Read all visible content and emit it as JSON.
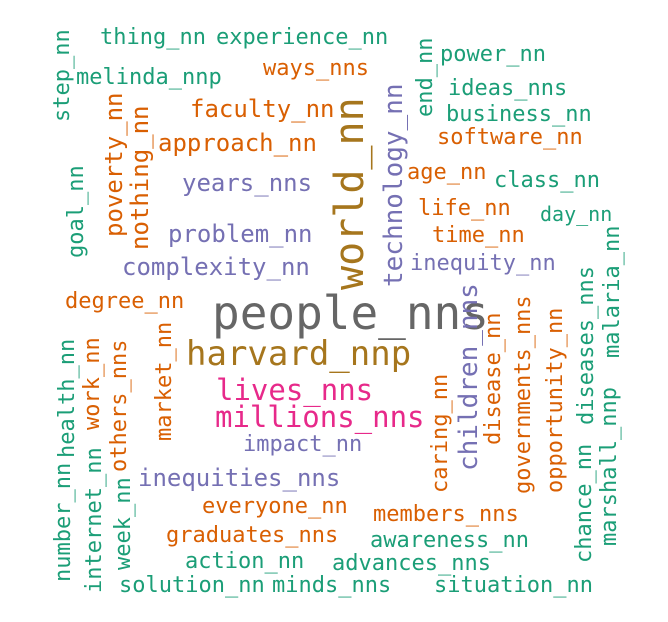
{
  "colors": {
    "teal": "#1b9e77",
    "orange": "#d95f02",
    "purple": "#7570b3",
    "magenta": "#e7298a",
    "olive": "#a6761d",
    "gray": "#666666"
  },
  "words": [
    {
      "text": "people_nns",
      "color": "gray",
      "orientation": "horizontal"
    },
    {
      "text": "world_nn",
      "color": "olive",
      "orientation": "vertical"
    },
    {
      "text": "harvard_nnp",
      "color": "olive",
      "orientation": "horizontal"
    },
    {
      "text": "lives_nns",
      "color": "magenta",
      "orientation": "horizontal"
    },
    {
      "text": "millions_nns",
      "color": "magenta",
      "orientation": "horizontal"
    },
    {
      "text": "thing_nn",
      "color": "teal",
      "orientation": "horizontal"
    },
    {
      "text": "experience_nn",
      "color": "teal",
      "orientation": "horizontal"
    },
    {
      "text": "power_nn",
      "color": "teal",
      "orientation": "horizontal"
    },
    {
      "text": "melinda_nnp",
      "color": "teal",
      "orientation": "horizontal"
    },
    {
      "text": "ways_nns",
      "color": "orange",
      "orientation": "horizontal"
    },
    {
      "text": "ideas_nns",
      "color": "teal",
      "orientation": "horizontal"
    },
    {
      "text": "business_nn",
      "color": "teal",
      "orientation": "horizontal"
    },
    {
      "text": "faculty_nn",
      "color": "orange",
      "orientation": "horizontal"
    },
    {
      "text": "software_nn",
      "color": "orange",
      "orientation": "horizontal"
    },
    {
      "text": "approach_nn",
      "color": "orange",
      "orientation": "horizontal"
    },
    {
      "text": "age_nn",
      "color": "orange",
      "orientation": "horizontal"
    },
    {
      "text": "class_nn",
      "color": "teal",
      "orientation": "horizontal"
    },
    {
      "text": "years_nns",
      "color": "purple",
      "orientation": "horizontal"
    },
    {
      "text": "life_nn",
      "color": "orange",
      "orientation": "horizontal"
    },
    {
      "text": "day_nn",
      "color": "teal",
      "orientation": "horizontal"
    },
    {
      "text": "problem_nn",
      "color": "purple",
      "orientation": "horizontal"
    },
    {
      "text": "time_nn",
      "color": "orange",
      "orientation": "horizontal"
    },
    {
      "text": "complexity_nn",
      "color": "purple",
      "orientation": "horizontal"
    },
    {
      "text": "inequity_nn",
      "color": "purple",
      "orientation": "horizontal"
    },
    {
      "text": "degree_nn",
      "color": "orange",
      "orientation": "horizontal"
    },
    {
      "text": "impact_nn",
      "color": "purple",
      "orientation": "horizontal"
    },
    {
      "text": "inequities_nns",
      "color": "purple",
      "orientation": "horizontal"
    },
    {
      "text": "everyone_nn",
      "color": "orange",
      "orientation": "horizontal"
    },
    {
      "text": "members_nns",
      "color": "orange",
      "orientation": "horizontal"
    },
    {
      "text": "graduates_nns",
      "color": "orange",
      "orientation": "horizontal"
    },
    {
      "text": "awareness_nn",
      "color": "teal",
      "orientation": "horizontal"
    },
    {
      "text": "action_nn",
      "color": "teal",
      "orientation": "horizontal"
    },
    {
      "text": "advances_nns",
      "color": "teal",
      "orientation": "horizontal"
    },
    {
      "text": "solution_nn",
      "color": "teal",
      "orientation": "horizontal"
    },
    {
      "text": "minds_nns",
      "color": "teal",
      "orientation": "horizontal"
    },
    {
      "text": "situation_nn",
      "color": "teal",
      "orientation": "horizontal"
    },
    {
      "text": "step_nn",
      "color": "teal",
      "orientation": "vertical"
    },
    {
      "text": "goal_nn",
      "color": "teal",
      "orientation": "vertical"
    },
    {
      "text": "poverty_nn",
      "color": "orange",
      "orientation": "vertical"
    },
    {
      "text": "nothing_nn",
      "color": "orange",
      "orientation": "vertical"
    },
    {
      "text": "technology_nn",
      "color": "purple",
      "orientation": "vertical"
    },
    {
      "text": "end_nn",
      "color": "teal",
      "orientation": "vertical"
    },
    {
      "text": "market_nn",
      "color": "orange",
      "orientation": "vertical"
    },
    {
      "text": "health_nn",
      "color": "teal",
      "orientation": "vertical"
    },
    {
      "text": "work_nn",
      "color": "orange",
      "orientation": "vertical"
    },
    {
      "text": "others_nns",
      "color": "orange",
      "orientation": "vertical"
    },
    {
      "text": "number_nn",
      "color": "teal",
      "orientation": "vertical"
    },
    {
      "text": "internet_nn",
      "color": "teal",
      "orientation": "vertical"
    },
    {
      "text": "week_nn",
      "color": "teal",
      "orientation": "vertical"
    },
    {
      "text": "caring_nn",
      "color": "orange",
      "orientation": "vertical"
    },
    {
      "text": "children_nns",
      "color": "purple",
      "orientation": "vertical"
    },
    {
      "text": "disease_nn",
      "color": "orange",
      "orientation": "vertical"
    },
    {
      "text": "governments_nns",
      "color": "orange",
      "orientation": "vertical"
    },
    {
      "text": "opportunity_nn",
      "color": "orange",
      "orientation": "vertical"
    },
    {
      "text": "chance_nn",
      "color": "teal",
      "orientation": "vertical"
    },
    {
      "text": "diseases_nns",
      "color": "teal",
      "orientation": "vertical"
    },
    {
      "text": "marshall_nnp",
      "color": "teal",
      "orientation": "vertical"
    },
    {
      "text": "malaria_nn",
      "color": "teal",
      "orientation": "vertical"
    }
  ]
}
